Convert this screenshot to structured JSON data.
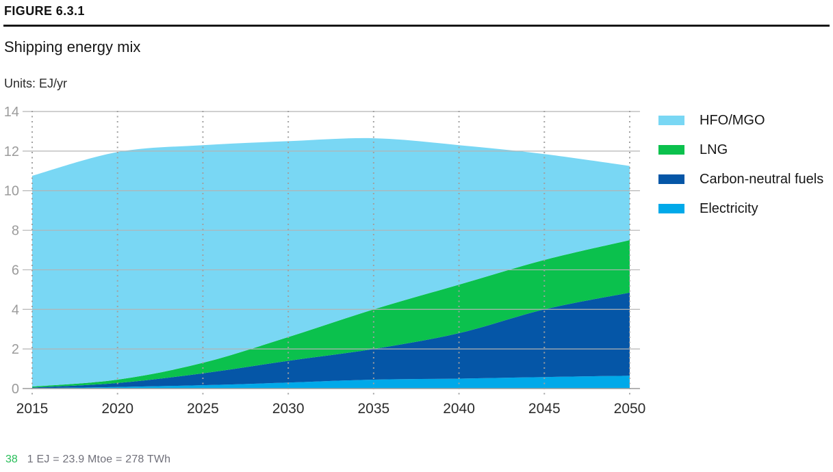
{
  "header": {
    "figure_label": "FIGURE 6.3.1",
    "title": "Shipping energy mix",
    "units_label": "Units: EJ/yr"
  },
  "chart_data": {
    "type": "area",
    "stacked": true,
    "title": "Shipping energy mix",
    "ylabel": "EJ/yr",
    "xlabel": "",
    "x": [
      2015,
      2020,
      2025,
      2030,
      2035,
      2040,
      2045,
      2050
    ],
    "x_tick_labels": [
      "2015",
      "2020",
      "2025",
      "2030",
      "2035",
      "2040",
      "2045",
      "2050"
    ],
    "y_ticks": [
      0,
      2,
      4,
      6,
      8,
      10,
      12,
      14
    ],
    "ylim": [
      0,
      14
    ],
    "grid": {
      "horizontal": "solid",
      "vertical": "dotted"
    },
    "legend_position": "right",
    "series": [
      {
        "name": "HFO/MGO",
        "color": "#79D7F4",
        "values": [
          10.65,
          11.5,
          11.0,
          9.9,
          8.65,
          7.05,
          5.35,
          3.75
        ]
      },
      {
        "name": "LNG",
        "color": "#0BC14D",
        "values": [
          0.05,
          0.17,
          0.53,
          1.2,
          2.0,
          2.45,
          2.5,
          2.65
        ]
      },
      {
        "name": "Carbon-neutral fuels",
        "color": "#0556A7",
        "values": [
          0.03,
          0.2,
          0.6,
          1.1,
          1.55,
          2.3,
          3.42,
          4.2
        ]
      },
      {
        "name": "Electricity",
        "color": "#00A9E9",
        "values": [
          0.02,
          0.08,
          0.17,
          0.3,
          0.45,
          0.5,
          0.58,
          0.65
        ]
      }
    ],
    "stacked_totals": [
      10.75,
      11.95,
      12.3,
      12.5,
      12.65,
      12.3,
      11.85,
      11.25
    ]
  },
  "footer": {
    "page_number": "38",
    "note": "1 EJ = 23.9 Mtoe = 278 TWh"
  }
}
